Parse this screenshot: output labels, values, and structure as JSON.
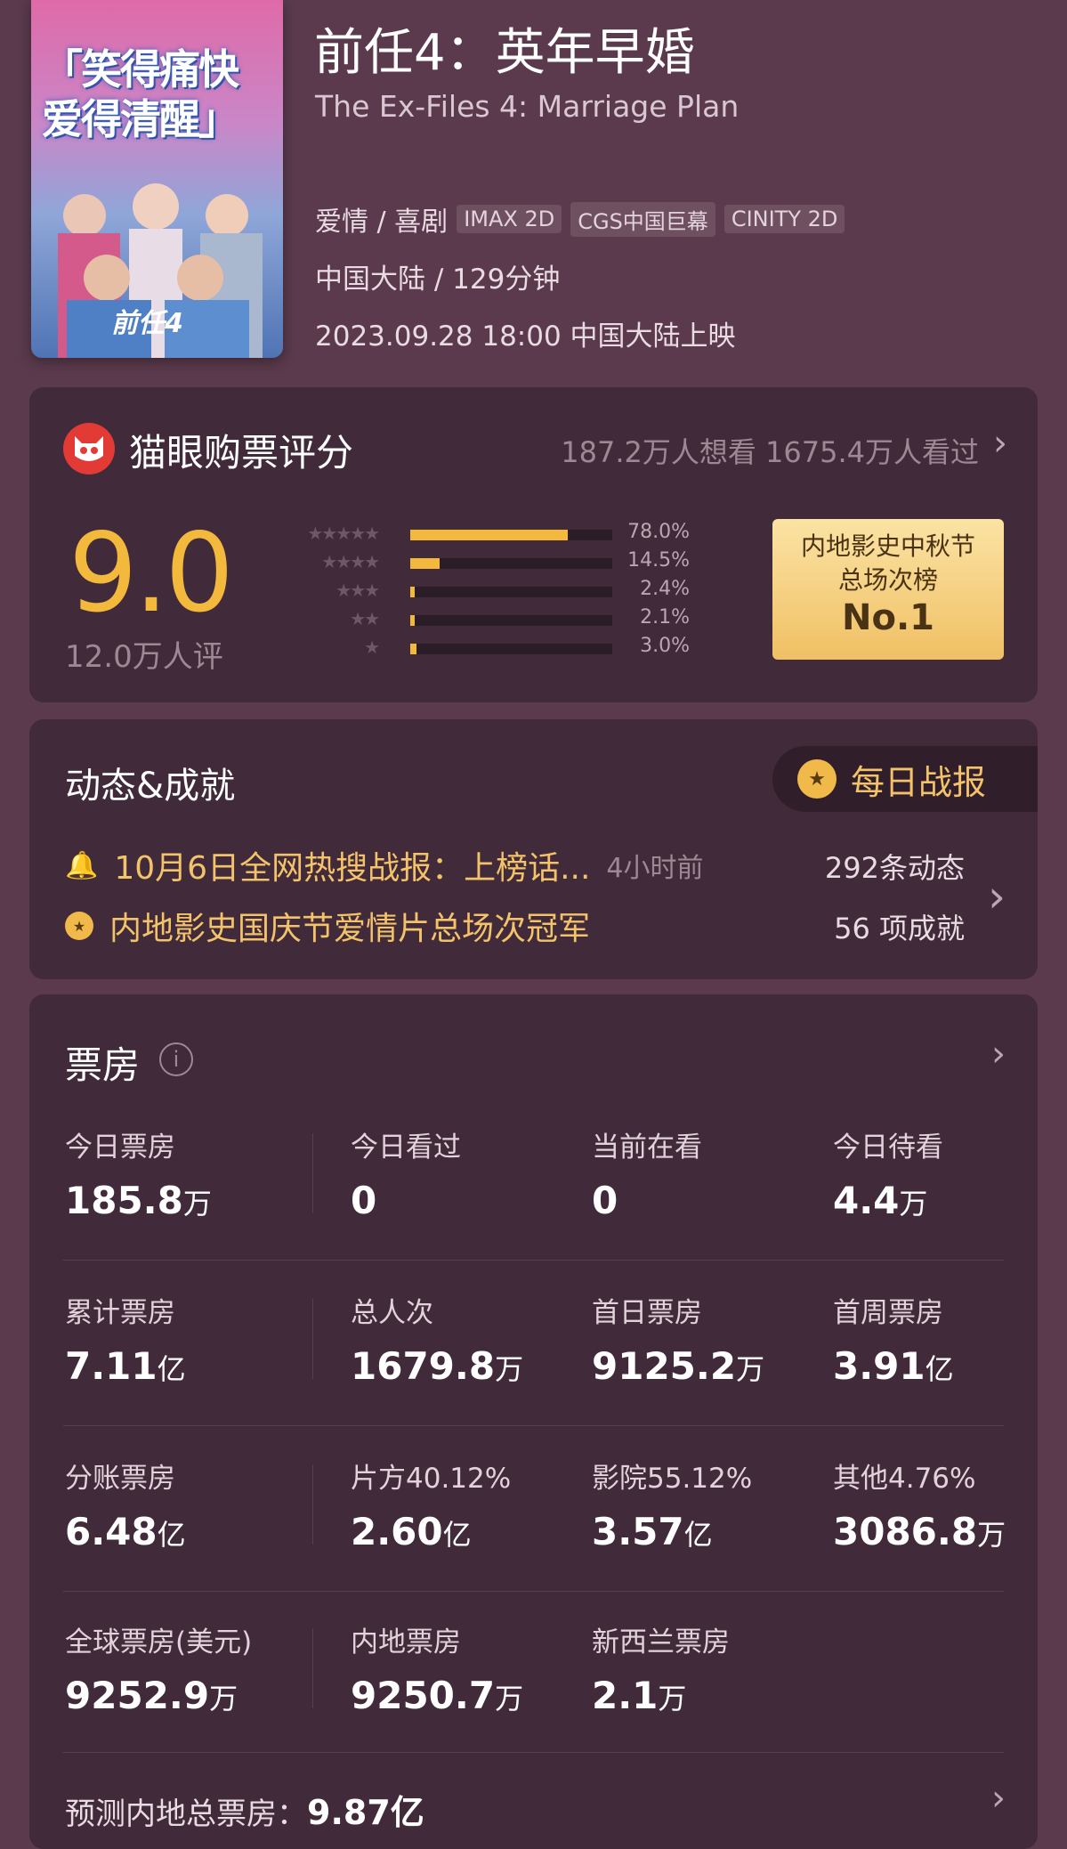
{
  "movie": {
    "poster_slogan": "「笑得痛快 爱得清醒」",
    "poster_logo": "前任4",
    "title": "前任4：英年早婚",
    "subtitle": "The Ex-Files 4: Marriage Plan",
    "genre": "爱情 / 喜剧",
    "tags": [
      "IMAX 2D",
      "CGS中国巨幕",
      "CINITY 2D"
    ],
    "region_duration": "中国大陆 / 129分钟",
    "release": "2023.09.28 18:00 中国大陆上映"
  },
  "rating": {
    "title": "猫眼购票评分",
    "stats": "187.2万人想看 1675.4万人看过",
    "score": "9.0",
    "count": "12.0万人评",
    "distribution": [
      {
        "stars": 5,
        "percent": 78.0,
        "label": "78.0%"
      },
      {
        "stars": 4,
        "percent": 14.5,
        "label": "14.5%"
      },
      {
        "stars": 3,
        "percent": 2.4,
        "label": "2.4%"
      },
      {
        "stars": 2,
        "percent": 2.1,
        "label": "2.1%"
      },
      {
        "stars": 1,
        "percent": 3.0,
        "label": "3.0%"
      }
    ],
    "badge_line1": "内地影史中秋节",
    "badge_line2": "总场次榜",
    "badge_rank": "No.1",
    "accent": "#f3b93c"
  },
  "dynamics": {
    "title": "动态&成就",
    "daily_button": "每日战报",
    "news": "10月6日全网热搜战报：上榜话...",
    "news_time": "4小时前",
    "news_count": "292条动态",
    "achievement": "内地影史国庆节爱情片总场次冠军",
    "achievement_count": "56 项成就"
  },
  "boxoffice": {
    "title": "票房",
    "rows": [
      [
        {
          "label": "今日票房",
          "num": "185.8",
          "unit": "万"
        },
        {
          "label": "今日看过",
          "num": "0",
          "unit": ""
        },
        {
          "label": "当前在看",
          "num": "0",
          "unit": ""
        },
        {
          "label": "今日待看",
          "num": "4.4",
          "unit": "万"
        }
      ],
      [
        {
          "label": "累计票房",
          "num": "7.11",
          "unit": "亿"
        },
        {
          "label": "总人次",
          "num": "1679.8",
          "unit": "万"
        },
        {
          "label": "首日票房",
          "num": "9125.2",
          "unit": "万"
        },
        {
          "label": "首周票房",
          "num": "3.91",
          "unit": "亿"
        }
      ],
      [
        {
          "label": "分账票房",
          "num": "6.48",
          "unit": "亿"
        },
        {
          "label": "片方40.12%",
          "num": "2.60",
          "unit": "亿"
        },
        {
          "label": "影院55.12%",
          "num": "3.57",
          "unit": "亿"
        },
        {
          "label": "其他4.76%",
          "num": "3086.8",
          "unit": "万"
        }
      ],
      [
        {
          "label": "全球票房(美元)",
          "num": "9252.9",
          "unit": "万"
        },
        {
          "label": "内地票房",
          "num": "9250.7",
          "unit": "万"
        },
        {
          "label": "新西兰票房",
          "num": "2.1",
          "unit": "万"
        }
      ]
    ],
    "forecast_label": "预测内地总票房：",
    "forecast_value": "9.87亿"
  }
}
